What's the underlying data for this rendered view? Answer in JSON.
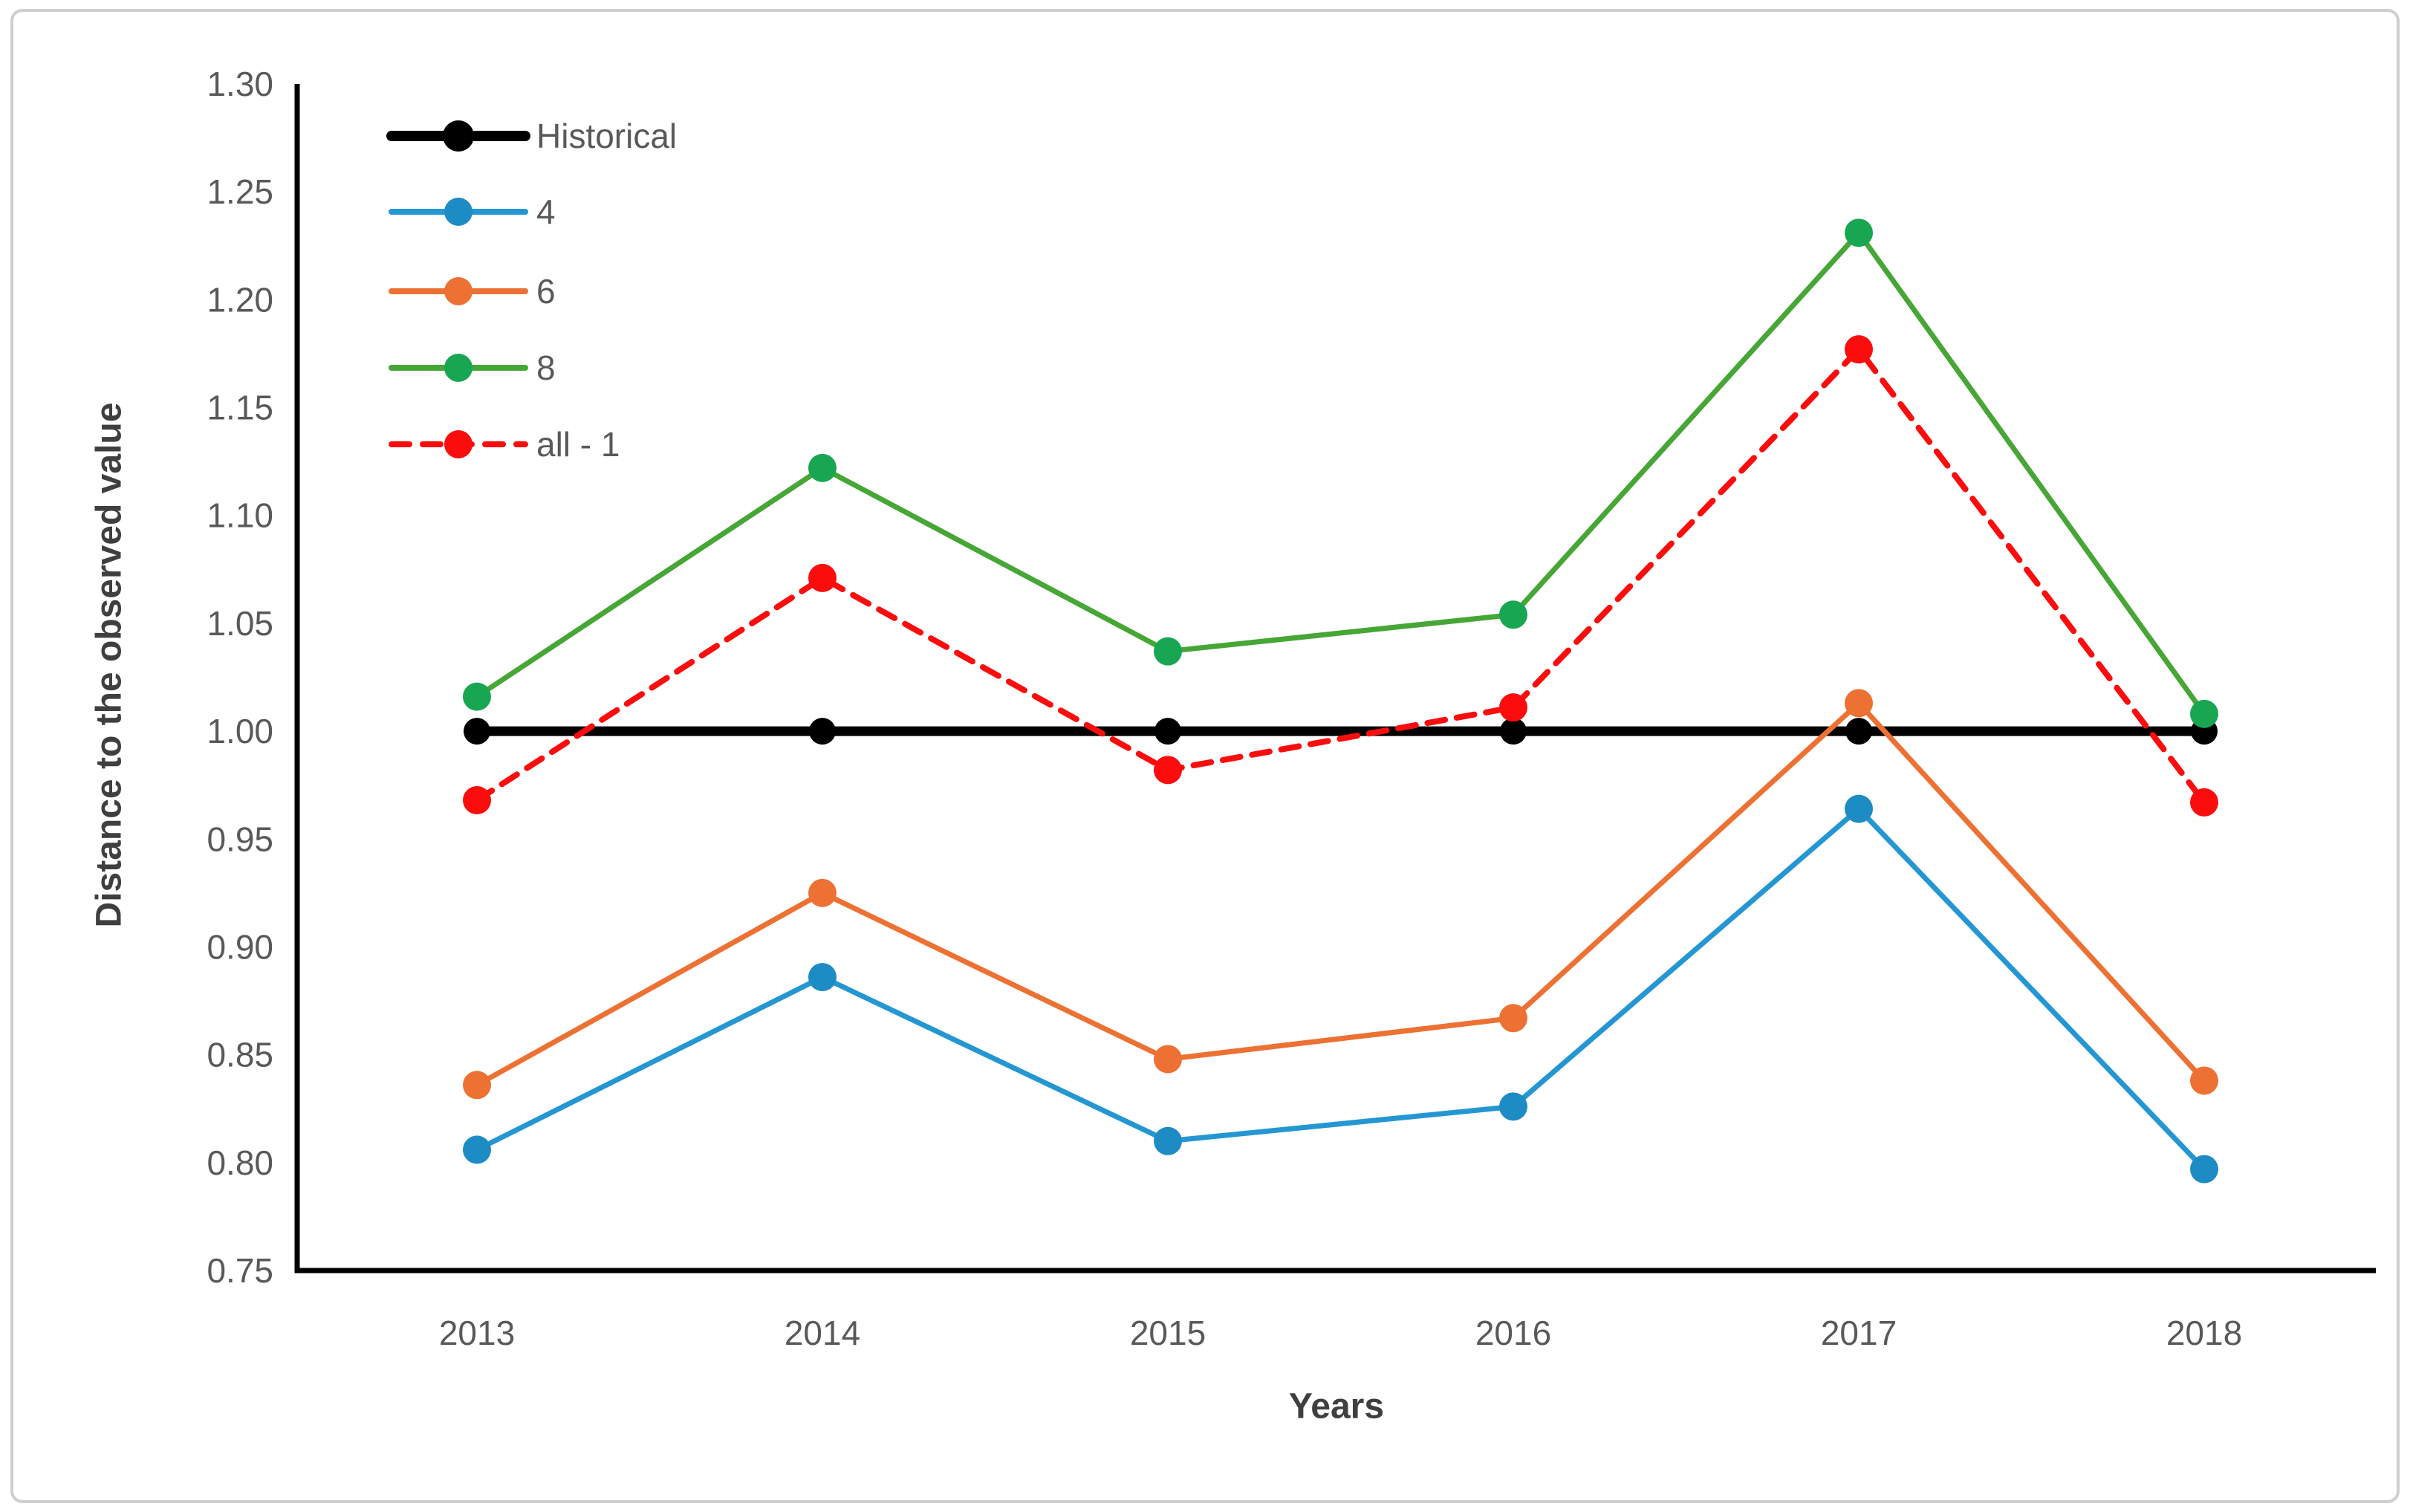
{
  "chart_data": {
    "type": "line",
    "title": "",
    "xlabel": "Years",
    "ylabel": "Distance to the observed value",
    "categories": [
      "2013",
      "2014",
      "2015",
      "2016",
      "2017",
      "2018"
    ],
    "ylim": [
      0.75,
      1.3
    ],
    "ytick_step": 0.05,
    "ytick_labels": [
      "0.75",
      "0.80",
      "0.85",
      "0.90",
      "0.95",
      "1.00",
      "1.05",
      "1.10",
      "1.15",
      "1.20",
      "1.25",
      "1.30"
    ],
    "grid": false,
    "legend_position": "inside-top-left",
    "series": [
      {
        "name": "Historical",
        "color": "#000000",
        "marker_color": "#000000",
        "dash": null,
        "line_width": 13,
        "marker_radius": 18,
        "values": [
          1.0,
          1.0,
          1.0,
          1.0,
          1.0,
          1.0
        ]
      },
      {
        "name": "4",
        "color": "#2497d3",
        "marker_color": "#1e8cc4",
        "dash": null,
        "line_width": 7,
        "marker_radius": 19,
        "values": [
          0.806,
          0.886,
          0.81,
          0.826,
          0.964,
          0.797
        ]
      },
      {
        "name": "6",
        "color": "#ed7132",
        "marker_color": "#ed7132",
        "dash": null,
        "line_width": 7,
        "marker_radius": 19,
        "values": [
          0.836,
          0.925,
          0.848,
          0.867,
          1.013,
          0.838
        ]
      },
      {
        "name": "8",
        "color": "#46a636",
        "marker_color": "#18a653",
        "dash": null,
        "line_width": 7,
        "marker_radius": 19,
        "values": [
          1.016,
          1.122,
          1.037,
          1.054,
          1.231,
          1.008
        ]
      },
      {
        "name": "all - 1",
        "color": "#fb0d0d",
        "marker_color": "#fb0d0d",
        "dash": "24 16",
        "line_width": 8,
        "marker_radius": 19,
        "values": [
          0.968,
          1.071,
          0.982,
          1.011,
          1.177,
          0.967
        ]
      }
    ],
    "colors": {
      "axis": "#000000",
      "tick_labels": "#595959",
      "axis_titles": "#3f3f3f",
      "legend_text": "#595959",
      "frame_border": "#cdd0ce"
    }
  }
}
